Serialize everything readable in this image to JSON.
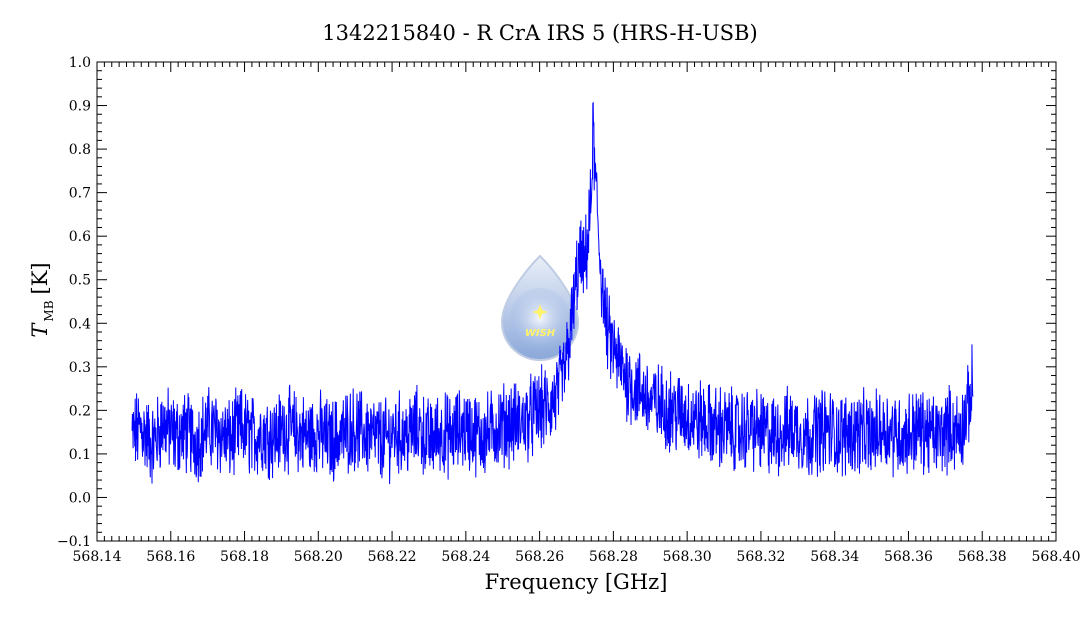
{
  "colors": {
    "series": "#0000ff",
    "axes": "#000000",
    "logo_drop_top": "#e8eef8",
    "logo_drop_bottom": "#7f9fd6",
    "logo_star": "#fff36a"
  },
  "chart_data": {
    "type": "line",
    "title": "1342215840 - R CrA IRS 5 (HRS-H-USB)",
    "xlabel": "Frequency [GHz]",
    "ylabel_main": "T",
    "ylabel_sub": "MB",
    "ylabel_unit": "[K]",
    "xlim": [
      568.14,
      568.4
    ],
    "ylim": [
      -0.1,
      1.0
    ],
    "xticks": [
      568.14,
      568.16,
      568.18,
      568.2,
      568.22,
      568.24,
      568.26,
      568.28,
      568.3,
      568.32,
      568.34,
      568.36,
      568.38,
      568.4
    ],
    "xtick_labels": [
      "568.14",
      "568.16",
      "568.18",
      "568.20",
      "568.22",
      "568.24",
      "568.26",
      "568.28",
      "568.30",
      "568.32",
      "568.34",
      "568.36",
      "568.38",
      "568.40"
    ],
    "yticks": [
      -0.1,
      0.0,
      0.1,
      0.2,
      0.3,
      0.4,
      0.5,
      0.6,
      0.7,
      0.8,
      0.9,
      1.0
    ],
    "ytick_labels": [
      "−0.1",
      "0.0",
      "0.1",
      "0.2",
      "0.3",
      "0.4",
      "0.5",
      "0.6",
      "0.7",
      "0.8",
      "0.9",
      "1.0"
    ],
    "grid": false,
    "logo_text": "WISH",
    "series": [
      {
        "x": [
          568.1495,
          568.152,
          568.155,
          568.158,
          568.161,
          568.164,
          568.167,
          568.17,
          568.173,
          568.176,
          568.179,
          568.182,
          568.185,
          568.188,
          568.191,
          568.194,
          568.197,
          568.2,
          568.203,
          568.206,
          568.209,
          568.212,
          568.215,
          568.218,
          568.221,
          568.224,
          568.227,
          568.23,
          568.233,
          568.236,
          568.239,
          568.242,
          568.245,
          568.248,
          568.251,
          568.254,
          568.257,
          568.26,
          568.263,
          568.265,
          568.267,
          568.269,
          568.27,
          568.271,
          568.272,
          568.273,
          568.274,
          568.2745,
          568.275,
          568.2755,
          568.276,
          568.277,
          568.278,
          568.279,
          568.28,
          568.282,
          568.284,
          568.286,
          568.288,
          568.29,
          568.293,
          568.296,
          568.299,
          568.302,
          568.305,
          568.308,
          568.311,
          568.314,
          568.317,
          568.32,
          568.323,
          568.326,
          568.329,
          568.332,
          568.335,
          568.338,
          568.341,
          568.344,
          568.347,
          568.35,
          568.353,
          568.356,
          568.359,
          568.362,
          568.365,
          568.368,
          568.371,
          568.374,
          568.376,
          568.3775
        ],
        "values": [
          0.14,
          0.16,
          0.12,
          0.17,
          0.14,
          0.15,
          0.13,
          0.16,
          0.15,
          0.13,
          0.16,
          0.14,
          0.15,
          0.14,
          0.16,
          0.15,
          0.14,
          0.15,
          0.13,
          0.14,
          0.16,
          0.15,
          0.14,
          0.13,
          0.15,
          0.14,
          0.16,
          0.13,
          0.15,
          0.14,
          0.16,
          0.15,
          0.14,
          0.16,
          0.17,
          0.17,
          0.18,
          0.2,
          0.21,
          0.24,
          0.3,
          0.42,
          0.5,
          0.55,
          0.52,
          0.58,
          0.68,
          0.85,
          0.74,
          0.68,
          0.6,
          0.48,
          0.4,
          0.36,
          0.34,
          0.3,
          0.27,
          0.25,
          0.24,
          0.22,
          0.21,
          0.2,
          0.19,
          0.18,
          0.17,
          0.16,
          0.16,
          0.15,
          0.16,
          0.15,
          0.14,
          0.15,
          0.16,
          0.14,
          0.15,
          0.16,
          0.14,
          0.15,
          0.15,
          0.14,
          0.16,
          0.15,
          0.14,
          0.16,
          0.15,
          0.14,
          0.16,
          0.15,
          0.2,
          0.26
        ]
      }
    ]
  }
}
